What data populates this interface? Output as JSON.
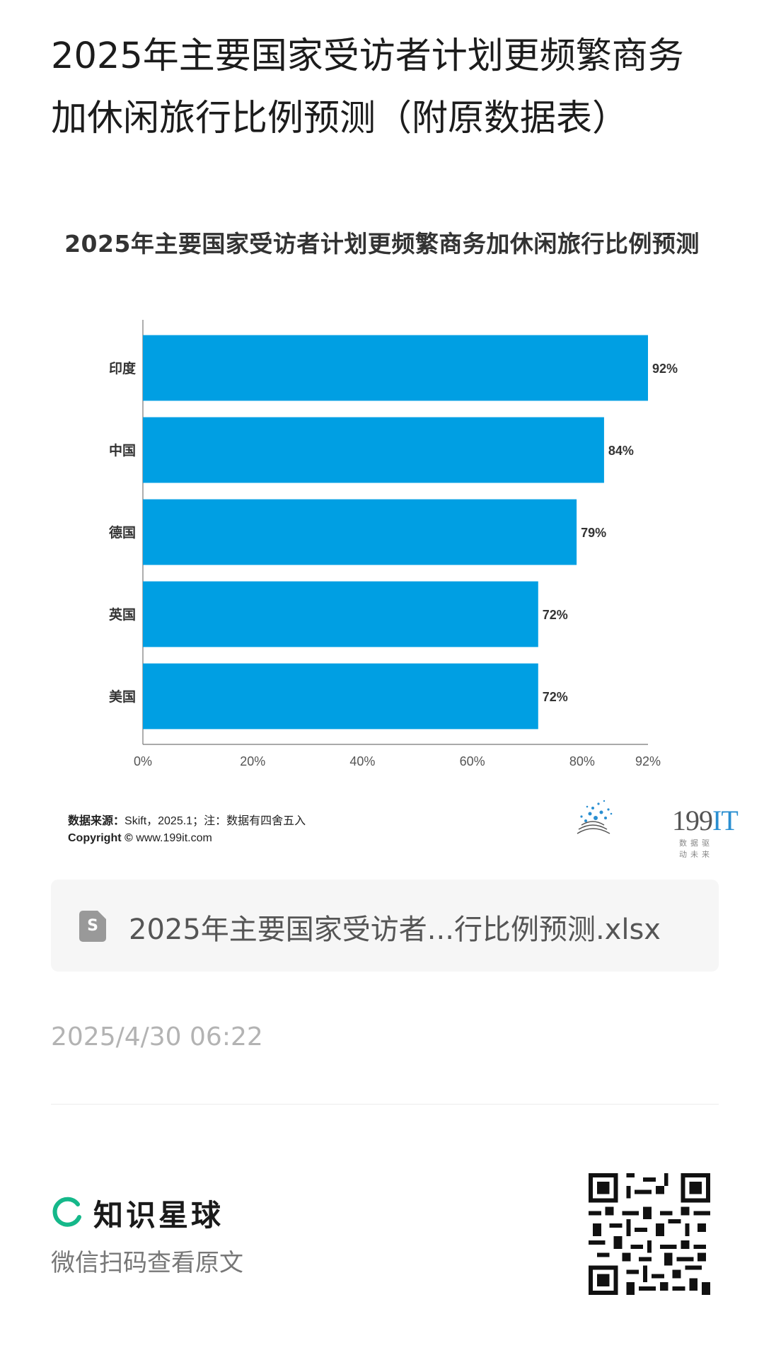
{
  "post": {
    "title": "2025年主要国家受访者计划更频繁商务加休闲旅行比例预测（附原数据表）"
  },
  "chart_data": {
    "type": "bar",
    "orientation": "horizontal",
    "title": "2025年主要国家受访者计划更频繁商务加休闲旅行比例预测",
    "categories": [
      "印度",
      "中国",
      "德国",
      "英国",
      "美国"
    ],
    "values": [
      92,
      84,
      79,
      72,
      72
    ],
    "value_labels": [
      "92%",
      "84%",
      "79%",
      "72%",
      "72%"
    ],
    "xlim": [
      0,
      92
    ],
    "xticks": [
      0,
      20,
      40,
      60,
      80,
      92
    ],
    "xtick_labels": [
      "0%",
      "20%",
      "40%",
      "60%",
      "80%",
      "92%"
    ],
    "bar_color": "#009fe3",
    "grid": false,
    "legend": "none",
    "xlabel": "",
    "ylabel": ""
  },
  "footer": {
    "source_label": "数据来源：",
    "source_text": "Skift，2025.1；注：数据有四舍五入",
    "copyright_label": "Copyright ©",
    "copyright_url": "www.199it.com",
    "brand_number": "199",
    "brand_it": "IT",
    "brand_tagline": "数据驱动未来"
  },
  "file": {
    "icon": "spreadsheet-icon",
    "icon_letter": "S",
    "name": "2025年主要国家受访者...行比例预测.xlsx"
  },
  "meta": {
    "timestamp": "2025/4/30 06:22"
  },
  "planet": {
    "name": "知识星球",
    "scan_text": "微信扫码查看原文",
    "accent_color": "#15b88a"
  }
}
